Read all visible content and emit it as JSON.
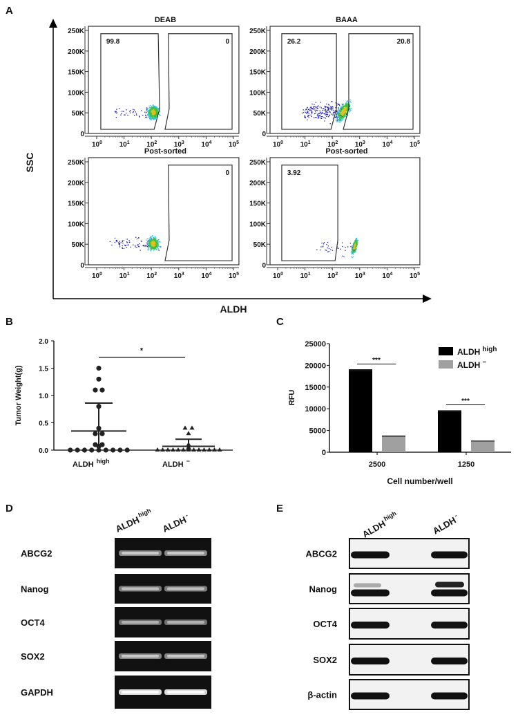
{
  "panel_labels": {
    "a": "A",
    "b": "B",
    "c": "C",
    "d": "D",
    "e": "E"
  },
  "panel_a": {
    "y_axis_label": "SSC",
    "x_axis_label": "ALDH",
    "y_ticks": [
      "0",
      "50K",
      "100K",
      "150K",
      "200K",
      "250K"
    ],
    "x_ticks": [
      {
        "base": "10",
        "exp": "0"
      },
      {
        "base": "10",
        "exp": "1"
      },
      {
        "base": "10",
        "exp": "2"
      },
      {
        "base": "10",
        "exp": "3"
      },
      {
        "base": "10",
        "exp": "4"
      },
      {
        "base": "10",
        "exp": "5"
      }
    ],
    "plots": [
      {
        "title": "DEAB",
        "gates": [
          "99.8",
          "0"
        ]
      },
      {
        "title": "BAAA",
        "gates": [
          "26.2",
          "20.8"
        ]
      },
      {
        "title": "Post-sorted",
        "gates": [
          "0"
        ]
      },
      {
        "title": "Post-sorted",
        "gates": [
          "3.92"
        ]
      }
    ],
    "colors": {
      "low": "#1a1aa0",
      "mid": "#20c0e0",
      "high": "#40c040",
      "peak": "#e0c020"
    }
  },
  "chart_data": [
    {
      "type": "scatter",
      "ylabel": "Tumor Weight(g)",
      "ylim": [
        0,
        2.0
      ],
      "y_ticks": [
        "0.0",
        "0.5",
        "1.0",
        "1.5",
        "2.0"
      ],
      "categories": [
        {
          "name": "ALDH",
          "sup": "high"
        },
        {
          "name": "ALDH",
          "sup": "−"
        }
      ],
      "series": [
        {
          "marker": "circle",
          "values": [
            1.5,
            1.3,
            1.1,
            1.1,
            0.8,
            0.4,
            0.3,
            0.3,
            0.1,
            0.1,
            0.07,
            0,
            0,
            0,
            0,
            0,
            0,
            0,
            0,
            0
          ],
          "mean": 0.35,
          "sd": 0.51
        },
        {
          "marker": "triangle",
          "values": [
            0.4,
            0.4,
            0.3,
            0.1,
            0.05,
            0.03,
            0,
            0,
            0,
            0,
            0,
            0,
            0,
            0,
            0,
            0,
            0,
            0,
            0
          ],
          "mean": 0.07,
          "sd": 0.13
        }
      ],
      "significance": "*"
    },
    {
      "type": "bar",
      "xlabel": "Cell number/well",
      "ylabel": "RFU",
      "ylim": [
        0,
        25000
      ],
      "y_ticks": [
        "0",
        "5000",
        "10000",
        "15000",
        "20000",
        "25000"
      ],
      "categories": [
        "2500",
        "1250"
      ],
      "series": [
        {
          "name": "ALDH",
          "sup": "high",
          "color": "#000000",
          "values": [
            18800,
            9400
          ],
          "errors": [
            300,
            250
          ]
        },
        {
          "name": "ALDH",
          "sup": "−",
          "color": "#a0a0a0",
          "values": [
            3700,
            2600
          ],
          "errors": [
            150,
            100
          ]
        }
      ],
      "significance": [
        "***",
        "***"
      ],
      "legend": "top-right"
    }
  ],
  "panel_d": {
    "lanes": [
      {
        "name": "ALDH",
        "sup": "high"
      },
      {
        "name": "ALDH",
        "sup": "-"
      }
    ],
    "rows": [
      "ABCG2",
      "Nanog",
      "OCT4",
      "SOX2",
      "GAPDH"
    ]
  },
  "panel_e": {
    "lanes": [
      {
        "name": "ALDH",
        "sup": "high"
      },
      {
        "name": "ALDH",
        "sup": "-"
      }
    ],
    "rows": [
      "ABCG2",
      "Nanog",
      "OCT4",
      "SOX2",
      "β-actin"
    ]
  }
}
